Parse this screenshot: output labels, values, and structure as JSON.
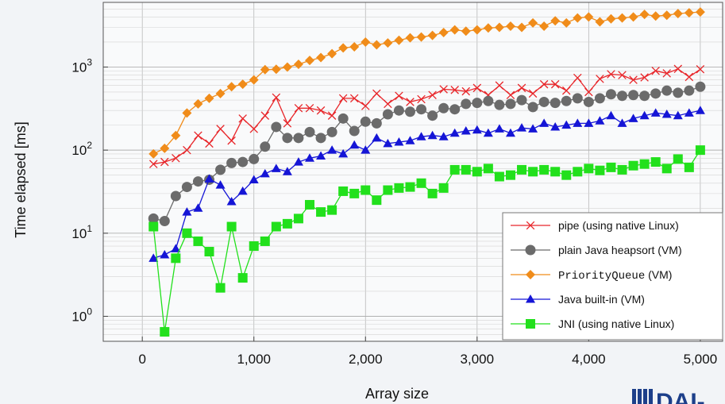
{
  "chart_data": {
    "type": "line",
    "xlabel": "Array size",
    "ylabel": "Time elapsed [ms]",
    "xlim": [
      -350,
      5200
    ],
    "ylim": [
      0.5,
      6000
    ],
    "y_scale": "log",
    "grid": true,
    "legend_placement": "bottom-right",
    "x_ticks": [
      0,
      1000,
      2000,
      3000,
      4000,
      5000
    ],
    "x_tick_labels": [
      "0",
      "1,000",
      "2,000",
      "3,000",
      "4,000",
      "5,000"
    ],
    "y_ticks": [
      1,
      10,
      100,
      1000
    ],
    "y_tick_labels": [
      {
        "base": "10",
        "exp": "0"
      },
      {
        "base": "10",
        "exp": "1"
      },
      {
        "base": "10",
        "exp": "2"
      },
      {
        "base": "10",
        "exp": "3"
      }
    ],
    "x": [
      100,
      200,
      300,
      400,
      500,
      600,
      700,
      800,
      900,
      1000,
      1100,
      1200,
      1300,
      1400,
      1500,
      1600,
      1700,
      1800,
      1900,
      2000,
      2100,
      2200,
      2300,
      2400,
      2500,
      2600,
      2700,
      2800,
      2900,
      3000,
      3100,
      3200,
      3300,
      3400,
      3500,
      3600,
      3700,
      3800,
      3900,
      4000,
      4100,
      4200,
      4300,
      4400,
      4500,
      4600,
      4700,
      4800,
      4900,
      5000
    ],
    "series": [
      {
        "name": "pipe (using native Linux)",
        "color": "#e8262a",
        "marker": "x",
        "values": [
          68,
          72,
          80,
          100,
          150,
          120,
          180,
          130,
          240,
          180,
          260,
          430,
          210,
          320,
          320,
          300,
          260,
          420,
          420,
          340,
          480,
          360,
          450,
          380,
          410,
          460,
          540,
          530,
          510,
          560,
          460,
          600,
          460,
          560,
          480,
          620,
          620,
          520,
          740,
          500,
          720,
          820,
          800,
          700,
          750,
          900,
          840,
          950,
          760,
          940
        ]
      },
      {
        "name": "plain Java heapsort (VM)",
        "color": "#6b6b6b",
        "marker": "circle",
        "values": [
          15,
          14,
          28,
          36,
          42,
          44,
          58,
          70,
          72,
          78,
          110,
          190,
          140,
          140,
          165,
          140,
          165,
          240,
          170,
          220,
          210,
          270,
          300,
          290,
          310,
          260,
          320,
          310,
          360,
          370,
          390,
          350,
          360,
          400,
          330,
          380,
          370,
          390,
          420,
          380,
          420,
          470,
          450,
          460,
          450,
          480,
          520,
          490,
          520,
          580
        ]
      },
      {
        "name": "PriorityQueue (VM)",
        "color": "#f08c1a",
        "marker": "diamond",
        "values": [
          90,
          105,
          150,
          280,
          360,
          420,
          480,
          580,
          620,
          700,
          930,
          940,
          1000,
          1080,
          1200,
          1300,
          1450,
          1700,
          1750,
          2000,
          1850,
          1950,
          2100,
          2250,
          2300,
          2400,
          2600,
          2800,
          2700,
          2800,
          2950,
          3000,
          3100,
          3000,
          3400,
          3100,
          3600,
          3400,
          3900,
          4000,
          3500,
          3800,
          3900,
          4000,
          4300,
          4100,
          4200,
          4400,
          4500,
          4600
        ]
      },
      {
        "name": "Java built-in (VM)",
        "color": "#1515d6",
        "marker": "triangle",
        "values": [
          5,
          5.5,
          6.5,
          18,
          20,
          45,
          38,
          24,
          32,
          44,
          52,
          60,
          55,
          72,
          80,
          85,
          100,
          90,
          115,
          100,
          140,
          120,
          125,
          130,
          145,
          150,
          145,
          160,
          170,
          175,
          160,
          180,
          160,
          185,
          180,
          210,
          190,
          200,
          210,
          210,
          225,
          260,
          210,
          240,
          260,
          280,
          270,
          260,
          280,
          300
        ]
      },
      {
        "name": "JNI (using native Linux)",
        "color": "#22e01c",
        "marker": "square",
        "values": [
          12,
          0.65,
          5,
          10,
          8,
          6,
          2.2,
          12,
          2.9,
          7,
          8,
          12,
          13,
          15,
          22,
          18,
          19,
          32,
          30,
          33,
          25,
          33,
          35,
          36,
          40,
          30,
          35,
          58,
          58,
          55,
          60,
          48,
          50,
          58,
          55,
          58,
          55,
          50,
          55,
          60,
          57,
          62,
          58,
          65,
          68,
          72,
          60,
          78,
          62,
          100
        ]
      }
    ]
  },
  "logo": {
    "text": "DAI-"
  }
}
